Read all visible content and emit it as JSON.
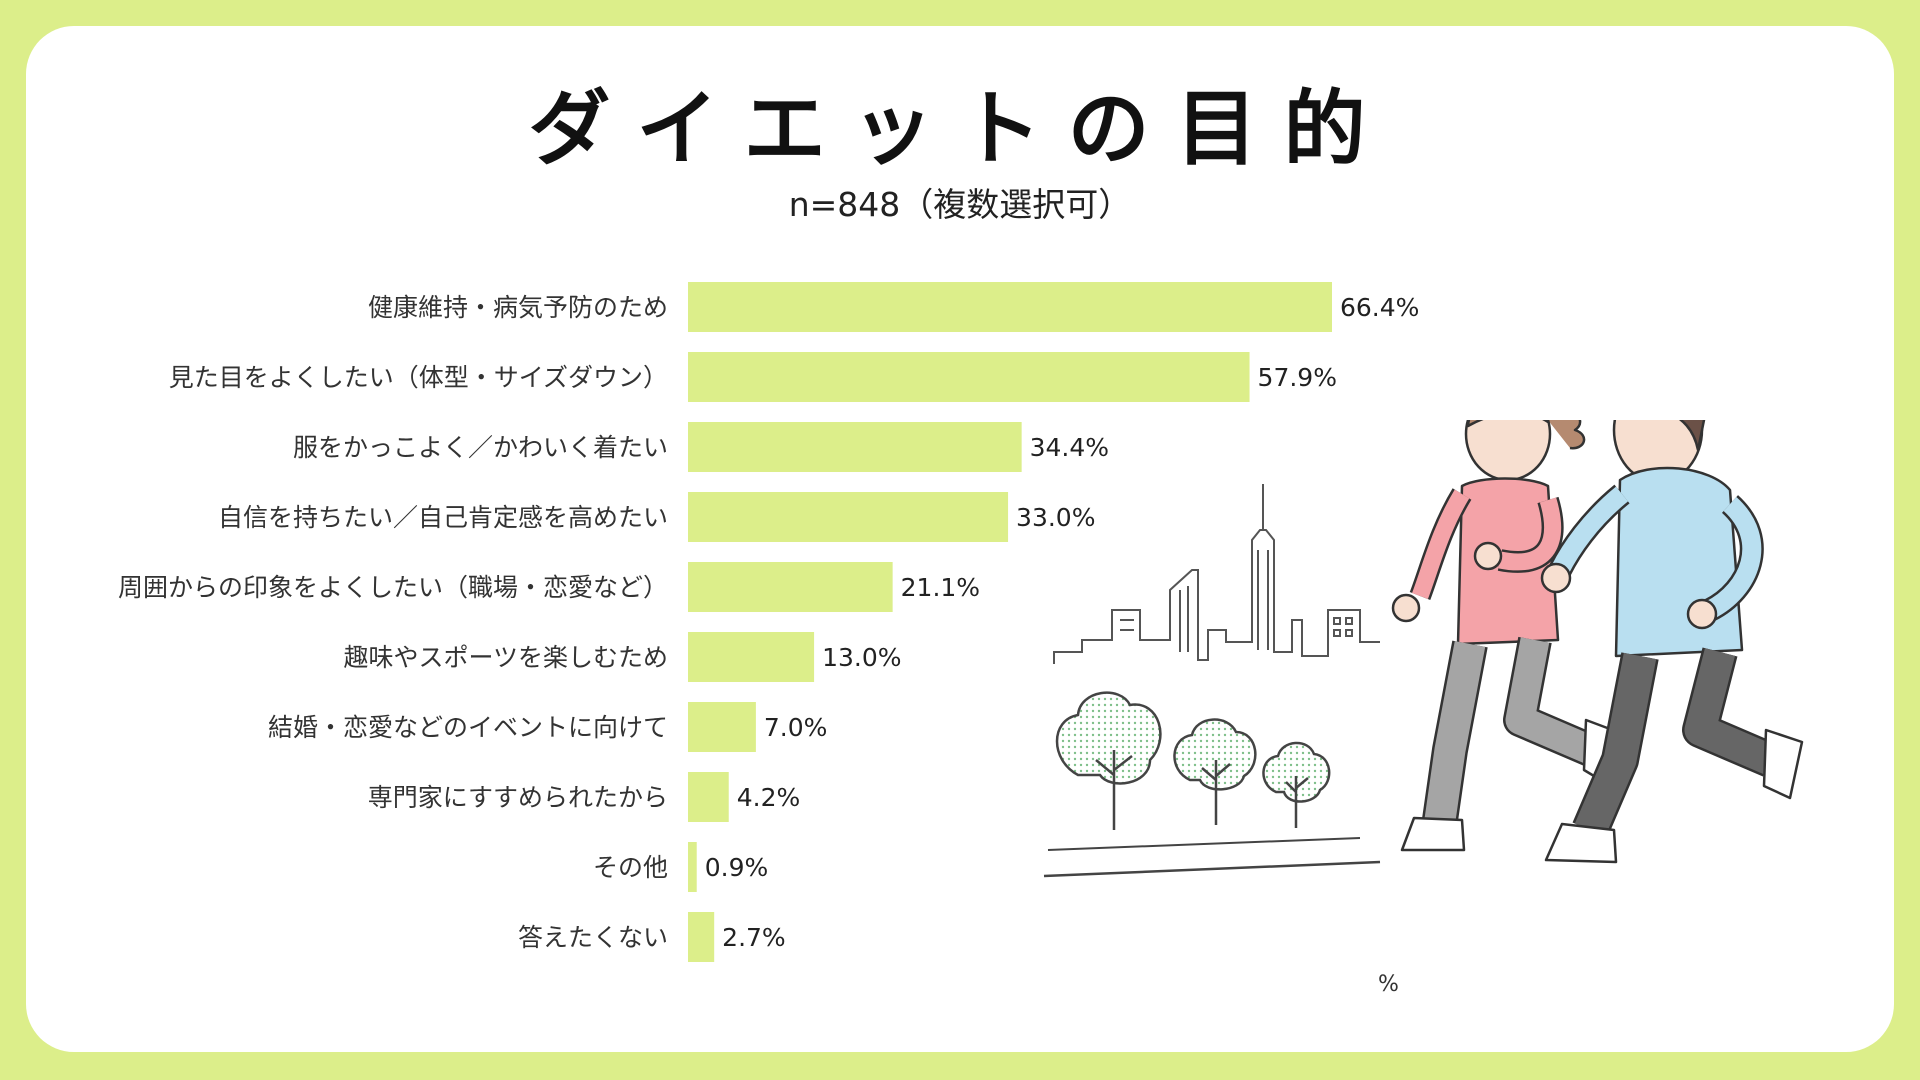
{
  "title": "ダイエットの目的",
  "subtitle": "n=848（複数選択可）",
  "footnote": "%",
  "colors": {
    "background": "#dcee8a",
    "bar": "#dcee8a",
    "card": "#ffffff"
  },
  "chart_data": {
    "type": "bar",
    "orientation": "horizontal",
    "categories": [
      "健康維持・病気予防のため",
      "見た目をよくしたい（体型・サイズダウン）",
      "服をかっこよく／かわいく着たい",
      "自信を持ちたい／自己肯定感を高めたい",
      "周囲からの印象をよくしたい（職場・恋愛など）",
      "趣味やスポーツを楽しむため",
      "結婚・恋愛などのイベントに向けて",
      "専門家にすすめられたから",
      "その他",
      "答えたくない"
    ],
    "values": [
      66.4,
      57.9,
      34.4,
      33.0,
      21.1,
      13.0,
      7.0,
      4.2,
      0.9,
      2.7
    ],
    "value_labels": [
      "66.4%",
      "57.9%",
      "34.4%",
      "33.0%",
      "21.1%",
      "13.0%",
      "7.0%",
      "4.2%",
      "0.9%",
      "2.7%"
    ],
    "unit": "%",
    "xlim": [
      0,
      100
    ],
    "grid": false,
    "legend": "none"
  }
}
